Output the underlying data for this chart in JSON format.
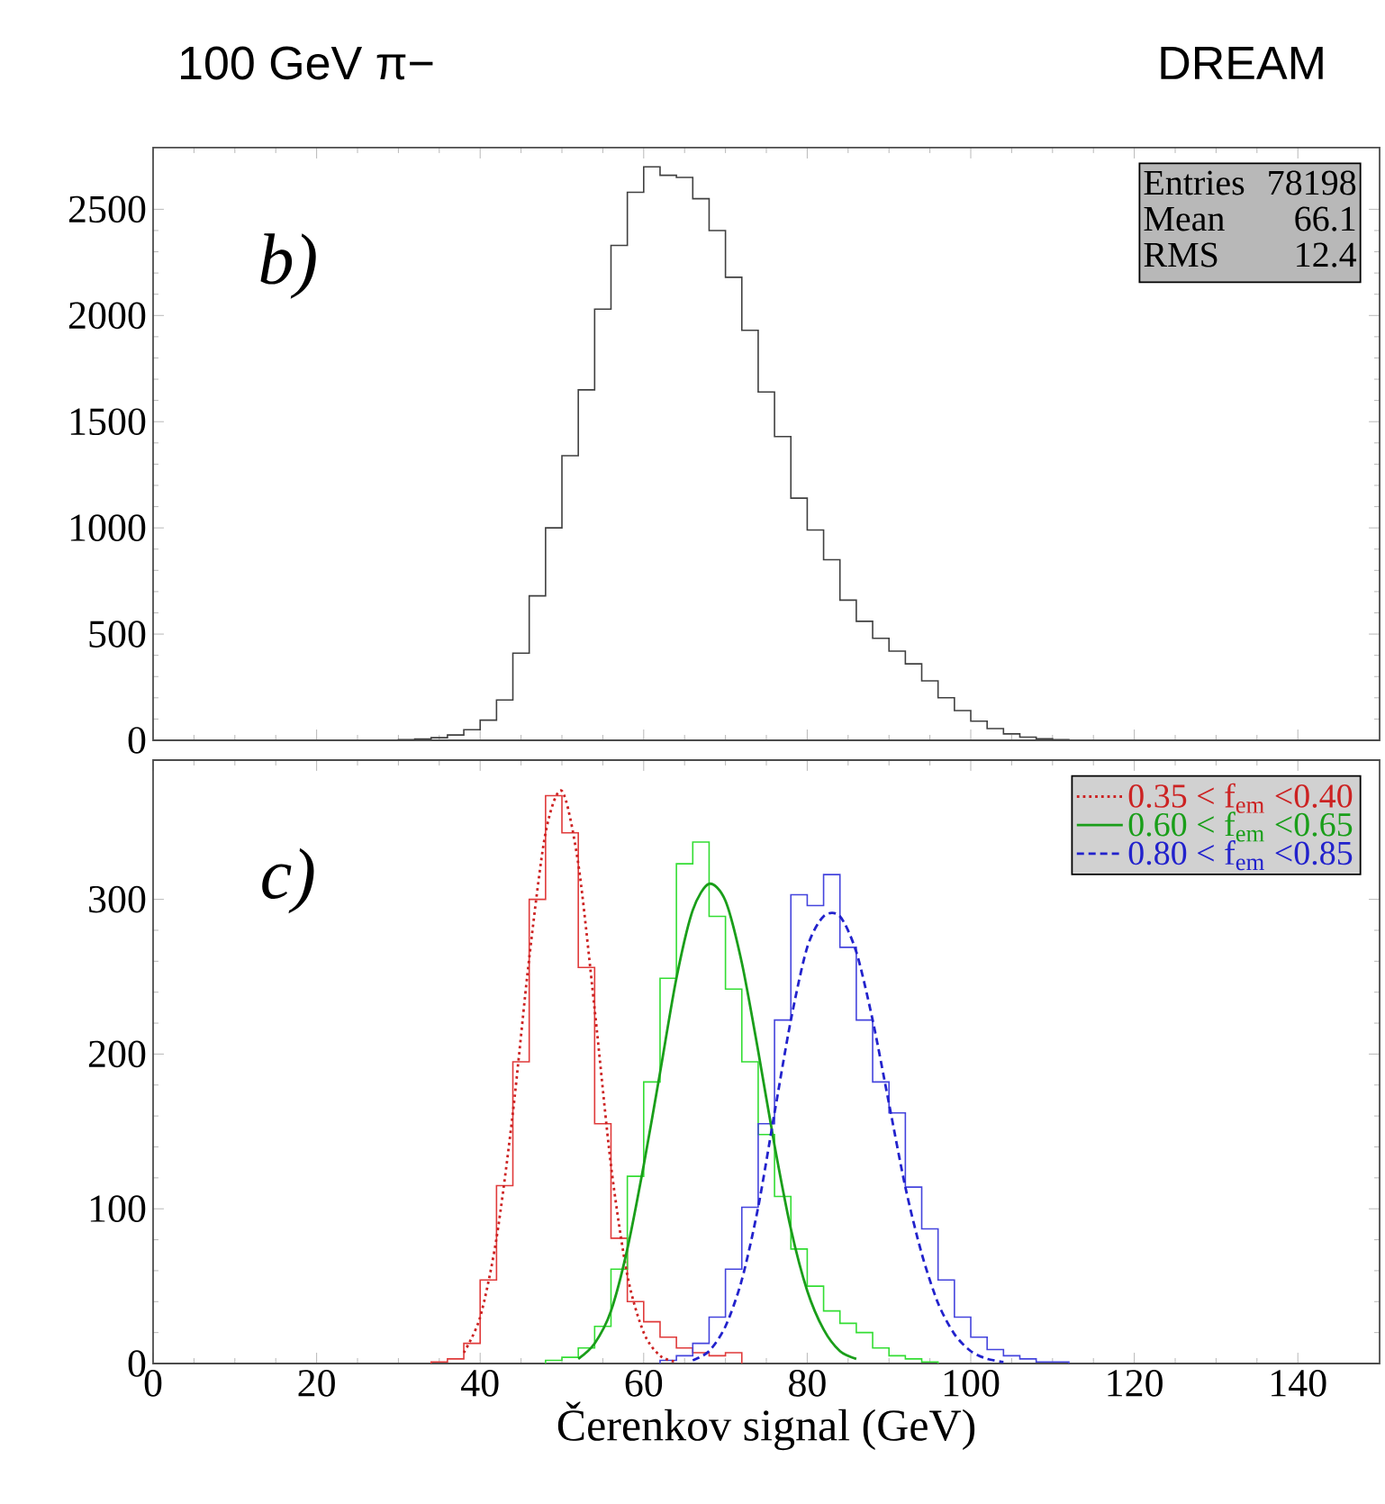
{
  "chart_data": [
    {
      "type": "histogram",
      "title": "100 GeV π−",
      "subtitle": "DREAM",
      "color": "#404040",
      "bins": [
        30,
        32,
        34,
        36,
        38,
        40,
        42,
        44,
        46,
        48,
        50,
        52,
        54,
        56,
        58,
        60,
        62,
        64,
        66,
        68,
        70,
        72,
        74,
        76,
        78,
        80,
        82,
        84,
        86,
        88,
        90,
        92,
        94,
        96,
        98,
        100,
        102,
        104,
        106,
        108,
        110,
        112
      ],
      "values": [
        3,
        6,
        12,
        25,
        50,
        95,
        190,
        410,
        680,
        1000,
        1340,
        1650,
        2030,
        2330,
        2580,
        2700,
        2660,
        2650,
        2550,
        2400,
        2180,
        1930,
        1640,
        1430,
        1140,
        990,
        850,
        660,
        560,
        480,
        420,
        360,
        280,
        200,
        140,
        90,
        55,
        30,
        15,
        7,
        3
      ],
      "xlim": [
        0,
        150
      ],
      "ylim": [
        0,
        2790
      ],
      "xticks": [
        0,
        20,
        40,
        60,
        80,
        100,
        120,
        140
      ],
      "yticks": [
        0,
        500,
        1000,
        1500,
        2000,
        2500
      ],
      "tick_labels": "y",
      "annotations": [
        "b)",
        "Entries",
        "78198",
        "Mean",
        "66.1",
        "RMS",
        "12.4"
      ]
    },
    {
      "type": "histogram",
      "xlabel": "Čerenkov signal (GeV)",
      "xlim": [
        0,
        150
      ],
      "ylim": [
        0,
        390
      ],
      "xticks": [
        0,
        20,
        40,
        60,
        80,
        100,
        120,
        140
      ],
      "yticks": [
        0,
        100,
        200,
        300
      ],
      "legend": "top right",
      "annotations": [
        "c)"
      ],
      "series": [
        {
          "type": "histogram",
          "color": "#e03a3a",
          "bins": [
            34,
            36,
            38,
            40,
            42,
            44,
            46,
            48,
            50,
            52,
            54,
            56,
            58,
            60,
            62,
            64,
            66,
            68,
            70,
            72
          ],
          "values": [
            1,
            3,
            13,
            54,
            115,
            195,
            300,
            367,
            343,
            256,
            155,
            81,
            40,
            27,
            17,
            10,
            7,
            5,
            7
          ]
        },
        {
          "type": "histogram",
          "color": "#33dd33",
          "bins": [
            48,
            50,
            52,
            54,
            56,
            58,
            60,
            62,
            64,
            66,
            68,
            70,
            72,
            74,
            76,
            78,
            80,
            82,
            84,
            86,
            88,
            90,
            92,
            94,
            96
          ],
          "values": [
            2,
            4,
            10,
            24,
            61,
            121,
            182,
            249,
            323,
            337,
            289,
            242,
            195,
            148,
            108,
            74,
            50,
            34,
            26,
            20,
            10,
            5,
            3,
            1
          ]
        },
        {
          "type": "histogram",
          "color": "#4444dd",
          "bins": [
            62,
            64,
            66,
            68,
            70,
            72,
            74,
            76,
            78,
            80,
            82,
            84,
            86,
            88,
            90,
            92,
            94,
            96,
            98,
            100,
            102,
            104,
            106,
            108,
            110,
            112
          ],
          "values": [
            2,
            5,
            13,
            30,
            61,
            101,
            155,
            222,
            303,
            296,
            316,
            269,
            222,
            182,
            162,
            114,
            87,
            54,
            30,
            17,
            9,
            5,
            3,
            1,
            1
          ]
        },
        {
          "type": "line",
          "name": "0.35 < f$_{em}$ <0.40",
          "color": "#cc2222",
          "line_style": "dotted",
          "x": [
            38,
            40,
            42,
            44,
            46,
            48,
            50,
            52,
            54,
            56,
            58,
            60,
            62,
            64
          ],
          "values": [
            7,
            30,
            81,
            162,
            262,
            343,
            370,
            323,
            229,
            128,
            57,
            20,
            5,
            1
          ]
        },
        {
          "type": "line",
          "name": "0.60 < f$_{em}$ <0.65",
          "color": "#1a9e1a",
          "line_style": "solid",
          "x": [
            52,
            54,
            56,
            58,
            60,
            62,
            64,
            66,
            68,
            70,
            72,
            74,
            76,
            78,
            80,
            82,
            84,
            86
          ],
          "values": [
            3,
            13,
            34,
            74,
            128,
            188,
            249,
            293,
            310,
            299,
            259,
            202,
            141,
            87,
            47,
            22,
            8,
            3
          ]
        },
        {
          "type": "line",
          "name": "0.80 < f$_{em}$ <0.85",
          "color": "#2222cc",
          "line_style": "dashed",
          "x": [
            66,
            68,
            70,
            72,
            74,
            76,
            78,
            80,
            82,
            84,
            86,
            88,
            90,
            92,
            94,
            96,
            98,
            100,
            102,
            104
          ],
          "values": [
            2,
            8,
            24,
            54,
            101,
            162,
            222,
            269,
            289,
            289,
            266,
            222,
            168,
            114,
            71,
            39,
            19,
            8,
            3,
            1
          ]
        }
      ]
    }
  ]
}
